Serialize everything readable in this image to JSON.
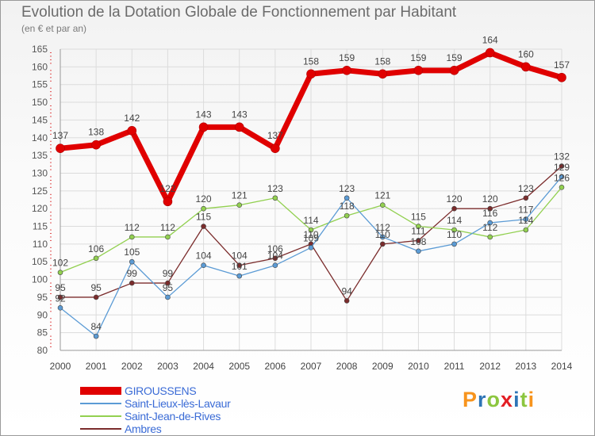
{
  "header": {
    "title": "Evolution de la Dotation Globale de Fonctionnement par Habitant",
    "subtitle": "(en € et par an)"
  },
  "chart_data": {
    "type": "line",
    "title": "Evolution de la Dotation Globale de Fonctionnement par Habitant",
    "subtitle": "(en € et par an)",
    "xlabel": "",
    "ylabel": "",
    "ylim": [
      80,
      165
    ],
    "yticks": [
      80,
      85,
      90,
      95,
      100,
      105,
      110,
      115,
      120,
      125,
      130,
      135,
      140,
      145,
      150,
      155,
      160,
      165
    ],
    "categories": [
      "2000",
      "2001",
      "2002",
      "2003",
      "2004",
      "2005",
      "2006",
      "2007",
      "2008",
      "2009",
      "2010",
      "2011",
      "2012",
      "2013",
      "2014"
    ],
    "grid": true,
    "legend_position": "bottom-left",
    "series": [
      {
        "name": "GIROUSSENS",
        "color": "#e00000",
        "values": [
          137,
          138,
          142,
          122,
          143,
          143,
          137,
          158,
          159,
          158,
          159,
          159,
          164,
          160,
          157
        ]
      },
      {
        "name": "Saint-Lieux-lès-Lavaur",
        "color": "#5b9bd5",
        "values": [
          92,
          84,
          105,
          95,
          104,
          101,
          104,
          109,
          123,
          112,
          108,
          110,
          116,
          117,
          129
        ]
      },
      {
        "name": "Saint-Jean-de-Rives",
        "color": "#92d050",
        "values": [
          102,
          106,
          112,
          112,
          120,
          121,
          123,
          114,
          118,
          121,
          115,
          114,
          112,
          114,
          126
        ]
      },
      {
        "name": "Ambres",
        "color": "#7b2c2c",
        "values": [
          95,
          95,
          99,
          99,
          115,
          104,
          106,
          110,
          94,
          110,
          111,
          120,
          120,
          123,
          132
        ]
      }
    ]
  },
  "brand": {
    "text": "Proxiti",
    "colors": [
      "#f7941d",
      "#2e75b6",
      "#8cc63f",
      "#e31e24",
      "#2e75b6",
      "#8cc63f",
      "#f7941d"
    ]
  }
}
